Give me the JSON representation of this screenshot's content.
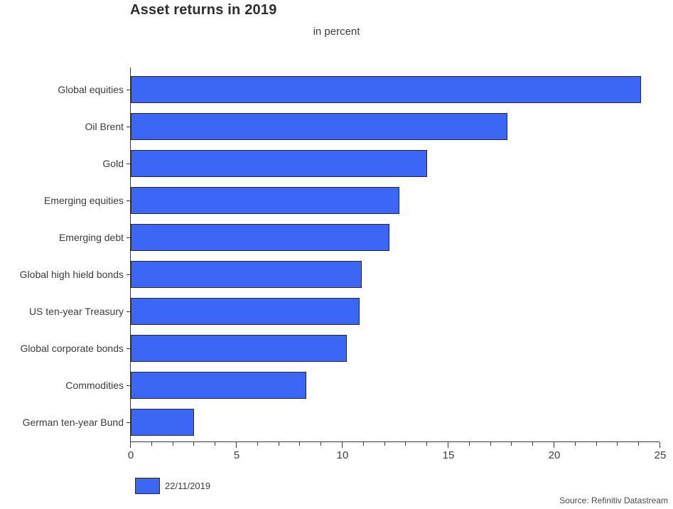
{
  "page": {
    "title": "Asset returns in 2019",
    "subtitle": "in percent",
    "source": "Source: Refinitiv Datastream"
  },
  "legend": {
    "label": "22/11/2019"
  },
  "colors": {
    "bar_fill": "#3b66f6",
    "bar_border": "#282833",
    "axis": "#3a3a3a",
    "text": "#3c3c3c"
  },
  "chart_data": {
    "type": "bar",
    "orientation": "horizontal",
    "title": "Asset returns in 2019",
    "subtitle": "in percent",
    "xlabel": "",
    "ylabel": "",
    "xlim": [
      0,
      25
    ],
    "x_major_ticks": [
      0,
      5,
      10,
      15,
      20,
      25
    ],
    "x_minor_tick_step": 1,
    "grid": false,
    "legend_position": "bottom-left",
    "legend_entries": [
      "22/11/2019"
    ],
    "categories": [
      "Global equities",
      "Oil Brent",
      "Gold",
      "Emerging equities",
      "Emerging debt",
      "Global high hield bonds",
      "US ten-year Treasury",
      "Global corporate bonds",
      "Commodities",
      "German ten-year Bund"
    ],
    "values": [
      24.1,
      17.8,
      14.0,
      12.7,
      12.2,
      10.9,
      10.8,
      10.2,
      8.3,
      3.0
    ]
  }
}
